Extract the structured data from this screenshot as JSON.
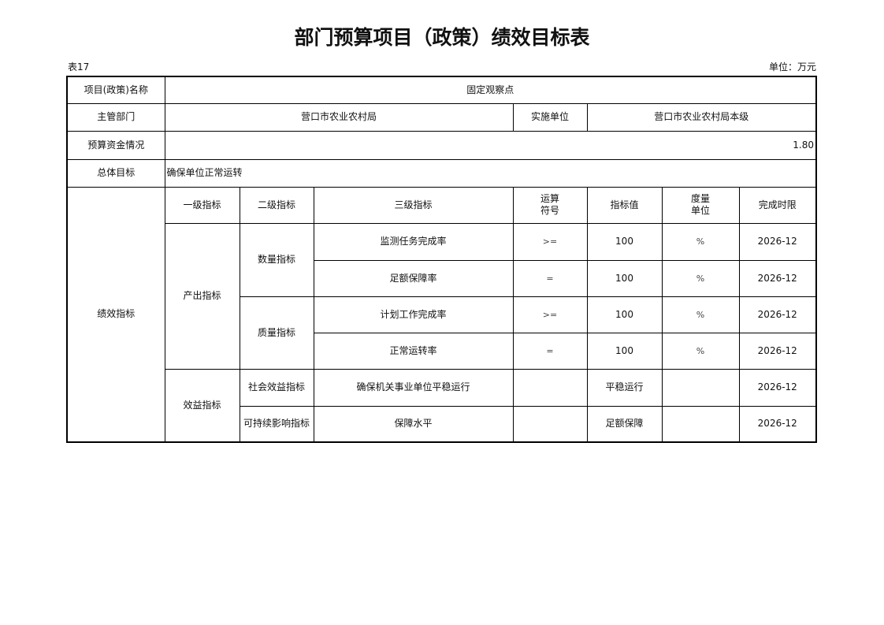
{
  "title": "部门预算项目（政策）绩效目标表",
  "table_no": "表17",
  "unit": "单位：万元",
  "project_name_label": "项目(政策)名称",
  "project_name": "固定观察点",
  "dept_label": "主管部门",
  "dept": "营口市农业农村局",
  "impl_label": "实施单位",
  "impl": "营口市农业农村局本级",
  "budget_label": "预算资金情况",
  "budget": "1.80",
  "goal_label": "总体目标",
  "goal": "确保单位正常运转",
  "perf_label": "绩效指标",
  "headers": [
    "一级指标",
    "二级指标",
    "三级指标",
    "运算\n符号",
    "指标值",
    "度量\n单位",
    "完成时限"
  ],
  "level1": [
    "产出指标",
    "效益指标"
  ],
  "level2": [
    "数量指标",
    "质量指标",
    "社会效益指标",
    "可持续影响指标"
  ],
  "rows": [
    {
      "name": "监测任务完成率",
      "op": ">=",
      "value": "100",
      "unit": "%",
      "deadline": "2026-12"
    },
    {
      "name": "足额保障率",
      "op": "=",
      "value": "100",
      "unit": "%",
      "deadline": "2026-12"
    },
    {
      "name": "计划工作完成率",
      "op": ">=",
      "value": "100",
      "unit": "%",
      "deadline": "2026-12"
    },
    {
      "name": "正常运转率",
      "op": "=",
      "value": "100",
      "unit": "%",
      "deadline": "2026-12"
    },
    {
      "name": "确保机关事业单位平稳运行",
      "op": "",
      "value": "平稳运行",
      "unit": "",
      "deadline": "2026-12"
    },
    {
      "name": "保障水平",
      "op": "",
      "value": "足额保障",
      "unit": "",
      "deadline": "2026-12"
    }
  ]
}
